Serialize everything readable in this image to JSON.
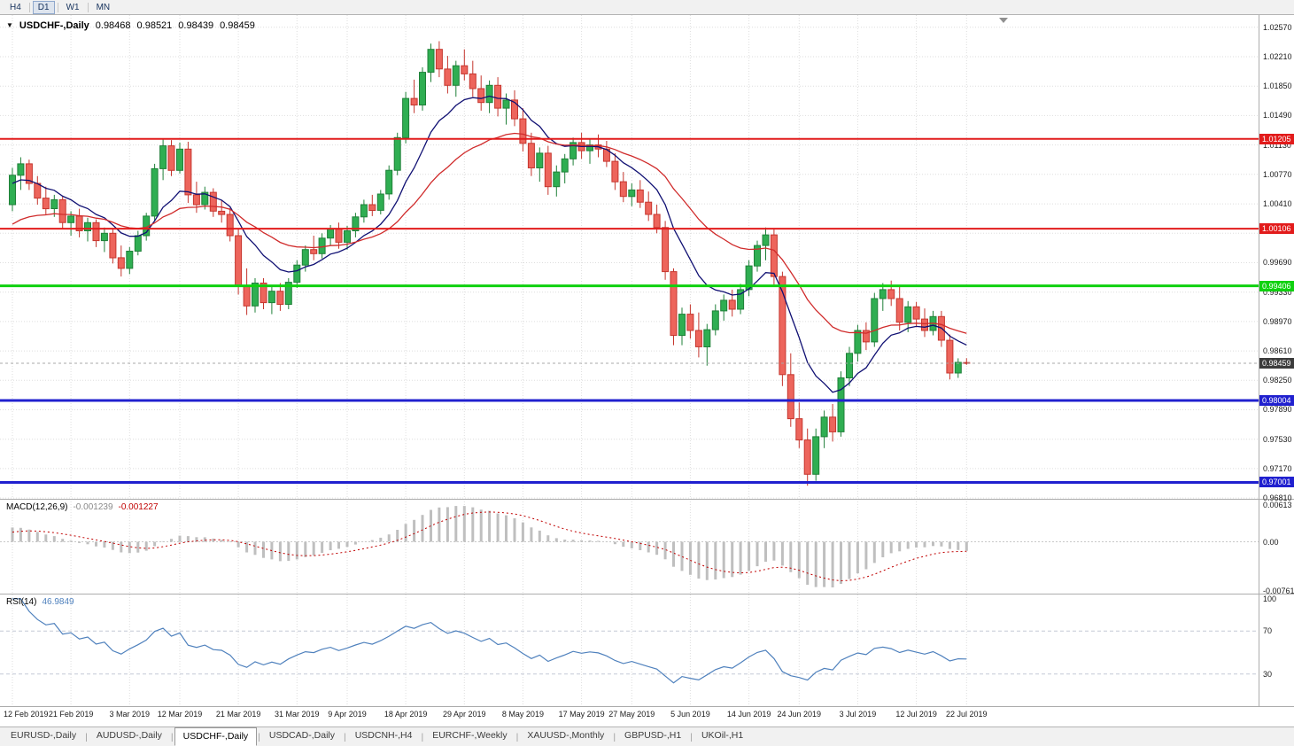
{
  "toolbar": {
    "timeframes": [
      {
        "label": "H4",
        "active": false
      },
      {
        "label": "D1",
        "active": true
      },
      {
        "label": "W1",
        "active": false
      },
      {
        "label": "MN",
        "active": false
      }
    ]
  },
  "colors": {
    "background": "#FFFFFF",
    "grid": "#DEDEDE",
    "bull": "#2FAE52",
    "bull_border": "#1F8038",
    "bear": "#ED655C",
    "bear_border": "#C5362E",
    "ma_fast": "#101073",
    "ma_slow": "#D02B2B",
    "hline_red": "#E21B1B",
    "hline_green": "#0FD10F",
    "hline_blue": "#2020CF",
    "macd_hist": "#BFBFBF",
    "macd_signal": "#C00000",
    "rsi_line": "#4F81BD",
    "rsi_level": "#C3C9D6",
    "current_price_box": "#3C3C3C",
    "axis_text": "#1A1A1A",
    "divider": "#ACACAC"
  },
  "chart_data": {
    "type": "candlestick",
    "title": "USDCHF-,Daily",
    "header": {
      "symbol": "USDCHF-,Daily",
      "open": "0.98468",
      "high": "0.98521",
      "low": "0.98439",
      "close": "0.98459"
    },
    "y_axis": {
      "min": 0.968,
      "max": 1.0272,
      "ticks": [
        "1.02570",
        "1.02210",
        "1.01850",
        "1.01490",
        "1.01130",
        "1.00770",
        "1.00410",
        "1.00050",
        "0.99690",
        "0.99330",
        "0.98970",
        "0.98610",
        "0.98250",
        "0.97890",
        "0.97530",
        "0.97170",
        "0.96810"
      ]
    },
    "x_labels": [
      {
        "label": "12 Feb 2019",
        "i": 0
      },
      {
        "label": "21 Feb 2019",
        "i": 7
      },
      {
        "label": "3 Mar 2019",
        "i": 14
      },
      {
        "label": "12 Mar 2019",
        "i": 20
      },
      {
        "label": "21 Mar 2019",
        "i": 27
      },
      {
        "label": "31 Mar 2019",
        "i": 34
      },
      {
        "label": "9 Apr 2019",
        "i": 40
      },
      {
        "label": "18 Apr 2019",
        "i": 47
      },
      {
        "label": "29 Apr 2019",
        "i": 54
      },
      {
        "label": "8 May 2019",
        "i": 61
      },
      {
        "label": "17 May 2019",
        "i": 68
      },
      {
        "label": "27 May 2019",
        "i": 74
      },
      {
        "label": "5 Jun 2019",
        "i": 81
      },
      {
        "label": "14 Jun 2019",
        "i": 88
      },
      {
        "label": "24 Jun 2019",
        "i": 94
      },
      {
        "label": "3 Jul 2019",
        "i": 101
      },
      {
        "label": "12 Jul 2019",
        "i": 108
      },
      {
        "label": "22 Jul 2019",
        "i": 114
      }
    ],
    "hlines": [
      {
        "price": 1.01205,
        "label": "1.01205",
        "color": "#E21B1B",
        "width": 2
      },
      {
        "price": 1.00106,
        "label": "1.00106",
        "color": "#E21B1B",
        "width": 2
      },
      {
        "price": 0.99406,
        "label": "0.99406",
        "color": "#0FD10F",
        "width": 3
      },
      {
        "price": 0.98004,
        "label": "0.98004",
        "color": "#2020CF",
        "width": 3
      },
      {
        "price": 0.97001,
        "label": "0.97001",
        "color": "#2020CF",
        "width": 3
      }
    ],
    "current": {
      "price": 0.98459,
      "label": "0.98459"
    },
    "moving_averages": [
      {
        "type": "EMA",
        "period": 10,
        "color": "#101073"
      },
      {
        "type": "EMA",
        "period": 25,
        "color": "#D02B2B"
      }
    ],
    "candles": [
      [
        1.004,
        1.0085,
        1.0032,
        1.0076
      ],
      [
        1.0076,
        1.0098,
        1.0058,
        1.009
      ],
      [
        1.009,
        1.0095,
        1.0058,
        1.0066
      ],
      [
        1.0066,
        1.0075,
        1.004,
        1.0048
      ],
      [
        1.0048,
        1.0062,
        1.0028,
        1.0035
      ],
      [
        1.0035,
        1.0052,
        1.0025,
        1.0046
      ],
      [
        1.0046,
        1.005,
        1.001,
        1.0018
      ],
      [
        1.0018,
        1.0032,
        1.0002,
        1.0026
      ],
      [
        1.0026,
        1.0035,
        1.0,
        1.0008
      ],
      [
        1.0008,
        1.0024,
        0.9995,
        1.0018
      ],
      [
        1.0018,
        1.0022,
        0.9988,
        0.9996
      ],
      [
        0.9996,
        1.0012,
        0.9982,
        1.0005
      ],
      [
        1.0005,
        1.001,
        0.9968,
        0.9975
      ],
      [
        0.9975,
        0.999,
        0.9952,
        0.9962
      ],
      [
        0.9962,
        0.9988,
        0.9955,
        0.9983
      ],
      [
        0.9983,
        1.0008,
        0.9978,
        1.0002
      ],
      [
        1.0002,
        1.003,
        0.9996,
        1.0026
      ],
      [
        1.0026,
        1.009,
        1.002,
        1.0084
      ],
      [
        1.0084,
        1.0121,
        1.007,
        1.0112
      ],
      [
        1.0112,
        1.0119,
        1.0075,
        1.0082
      ],
      [
        1.0082,
        1.0116,
        1.0078,
        1.0108
      ],
      [
        1.0108,
        1.0117,
        1.0042,
        1.0052
      ],
      [
        1.0052,
        1.0068,
        1.003,
        1.004
      ],
      [
        1.004,
        1.0062,
        1.0034,
        1.0055
      ],
      [
        1.0055,
        1.006,
        1.0025,
        1.0032
      ],
      [
        1.0032,
        1.0045,
        1.0018,
        1.0028
      ],
      [
        1.0028,
        1.0036,
        0.9995,
        1.0002
      ],
      [
        1.0002,
        1.001,
        0.993,
        0.994
      ],
      [
        0.994,
        0.9962,
        0.9905,
        0.9916
      ],
      [
        0.9916,
        0.995,
        0.9908,
        0.9944
      ],
      [
        0.9944,
        0.995,
        0.9912,
        0.992
      ],
      [
        0.992,
        0.994,
        0.9906,
        0.9934
      ],
      [
        0.9934,
        0.9944,
        0.991,
        0.9918
      ],
      [
        0.9918,
        0.995,
        0.9912,
        0.9945
      ],
      [
        0.9945,
        0.9972,
        0.9938,
        0.9966
      ],
      [
        0.9966,
        0.999,
        0.9958,
        0.9985
      ],
      [
        0.9985,
        1.0002,
        0.9972,
        0.998
      ],
      [
        0.998,
        1.0005,
        0.9974,
        0.9999
      ],
      [
        0.9999,
        1.0015,
        0.999,
        1.001
      ],
      [
        1.001,
        1.0018,
        0.9986,
        0.9994
      ],
      [
        0.9994,
        1.0014,
        0.9985,
        1.0008
      ],
      [
        1.0008,
        1.003,
        1.0,
        1.0025
      ],
      [
        1.0025,
        1.0046,
        1.0018,
        1.004
      ],
      [
        1.004,
        1.0052,
        1.0026,
        1.0033
      ],
      [
        1.0033,
        1.0058,
        1.0028,
        1.0053
      ],
      [
        1.0053,
        1.0088,
        1.0046,
        1.0082
      ],
      [
        1.0082,
        1.0128,
        1.0076,
        1.0122
      ],
      [
        1.0122,
        1.0178,
        1.0115,
        1.017
      ],
      [
        1.017,
        1.0193,
        1.0152,
        1.0162
      ],
      [
        1.0162,
        1.0208,
        1.0155,
        1.0202
      ],
      [
        1.0202,
        1.0237,
        1.019,
        1.023
      ],
      [
        1.023,
        1.024,
        1.0196,
        1.0206
      ],
      [
        1.0206,
        1.0222,
        1.0176,
        1.0186
      ],
      [
        1.0186,
        1.0216,
        1.0172,
        1.021
      ],
      [
        1.021,
        1.023,
        1.0192,
        1.02
      ],
      [
        1.02,
        1.0216,
        1.0172,
        1.0182
      ],
      [
        1.0182,
        1.0198,
        1.0155,
        1.0165
      ],
      [
        1.0165,
        1.0192,
        1.0152,
        1.0186
      ],
      [
        1.0186,
        1.0196,
        1.0148,
        1.0158
      ],
      [
        1.0158,
        1.0176,
        1.0138,
        1.0168
      ],
      [
        1.0168,
        1.018,
        1.0136,
        1.0145
      ],
      [
        1.0145,
        1.0158,
        1.0105,
        1.0115
      ],
      [
        1.0115,
        1.0128,
        1.0075,
        1.0085
      ],
      [
        1.0085,
        1.011,
        1.0068,
        1.0103
      ],
      [
        1.0103,
        1.0112,
        1.0052,
        1.0062
      ],
      [
        1.0062,
        1.0088,
        1.005,
        1.008
      ],
      [
        1.008,
        1.0102,
        1.0066,
        1.0096
      ],
      [
        1.0096,
        1.0122,
        1.0088,
        1.0116
      ],
      [
        1.0116,
        1.0128,
        1.0096,
        1.0106
      ],
      [
        1.0106,
        1.012,
        1.009,
        1.0113
      ],
      [
        1.0113,
        1.0126,
        1.0098,
        1.0108
      ],
      [
        1.0108,
        1.0118,
        1.0086,
        1.0093
      ],
      [
        1.0093,
        1.0103,
        1.0058,
        1.0068
      ],
      [
        1.0068,
        1.008,
        1.0043,
        1.005
      ],
      [
        1.005,
        1.0066,
        1.0038,
        1.0058
      ],
      [
        1.0058,
        1.007,
        1.0036,
        1.0043
      ],
      [
        1.0043,
        1.0056,
        1.002,
        1.0028
      ],
      [
        1.0028,
        1.004,
        1.0005,
        1.0012
      ],
      [
        1.0012,
        1.002,
        0.9948,
        0.9958
      ],
      [
        0.9958,
        0.9962,
        0.9868,
        0.988
      ],
      [
        0.988,
        0.9914,
        0.9868,
        0.9906
      ],
      [
        0.9906,
        0.9918,
        0.9876,
        0.9886
      ],
      [
        0.9886,
        0.9908,
        0.9853,
        0.9866
      ],
      [
        0.9866,
        0.9894,
        0.9843,
        0.9887
      ],
      [
        0.9887,
        0.9918,
        0.988,
        0.991
      ],
      [
        0.991,
        0.993,
        0.9898,
        0.9923
      ],
      [
        0.9923,
        0.9936,
        0.9903,
        0.9912
      ],
      [
        0.9912,
        0.9943,
        0.9906,
        0.9936
      ],
      [
        0.9936,
        0.9972,
        0.9928,
        0.9965
      ],
      [
        0.9965,
        0.9996,
        0.9958,
        0.999
      ],
      [
        0.999,
        1.0012,
        0.9972,
        1.0003
      ],
      [
        1.0003,
        1.001,
        0.9942,
        0.9952
      ],
      [
        0.9952,
        0.9958,
        0.9818,
        0.9832
      ],
      [
        0.9832,
        0.9858,
        0.9768,
        0.9778
      ],
      [
        0.9778,
        0.9798,
        0.9742,
        0.9752
      ],
      [
        0.9752,
        0.9766,
        0.9696,
        0.971
      ],
      [
        0.971,
        0.9766,
        0.9702,
        0.9756
      ],
      [
        0.9756,
        0.9788,
        0.9742,
        0.978
      ],
      [
        0.978,
        0.9796,
        0.975,
        0.9762
      ],
      [
        0.9762,
        0.9836,
        0.9756,
        0.9828
      ],
      [
        0.9828,
        0.9866,
        0.9818,
        0.9858
      ],
      [
        0.9858,
        0.9893,
        0.9848,
        0.9886
      ],
      [
        0.9886,
        0.9896,
        0.9862,
        0.9872
      ],
      [
        0.9872,
        0.9932,
        0.9866,
        0.9925
      ],
      [
        0.9925,
        0.9944,
        0.991,
        0.9936
      ],
      [
        0.9936,
        0.9947,
        0.9916,
        0.9925
      ],
      [
        0.9925,
        0.994,
        0.9886,
        0.9896
      ],
      [
        0.9896,
        0.9922,
        0.9884,
        0.9915
      ],
      [
        0.9915,
        0.9921,
        0.989,
        0.99
      ],
      [
        0.99,
        0.9913,
        0.9878,
        0.9886
      ],
      [
        0.9886,
        0.991,
        0.988,
        0.9903
      ],
      [
        0.9903,
        0.991,
        0.9866,
        0.9874
      ],
      [
        0.9874,
        0.9881,
        0.9826,
        0.9834
      ],
      [
        0.9834,
        0.9852,
        0.9828,
        0.9847
      ],
      [
        0.98468,
        0.98521,
        0.98439,
        0.98459
      ]
    ],
    "indicators": [
      {
        "name": "MACD",
        "title": "MACD(12,26,9)",
        "value_main": "-0.001239",
        "value_signal": "-0.001227",
        "range": [
          -0.008,
          0.0065
        ],
        "scale_labels": [
          {
            "text": "0.00613",
            "value": 0.00613
          },
          {
            "text": "0.00",
            "value": 0
          },
          {
            "text": "-0.00761",
            "value": -0.00761
          }
        ]
      },
      {
        "name": "RSI",
        "title": "RSI(14)",
        "value": "46.9849",
        "range": [
          0,
          104
        ],
        "levels": [
          70,
          30
        ],
        "scale_labels": [
          {
            "text": "100",
            "value": 100
          },
          {
            "text": "70",
            "value": 70
          },
          {
            "text": "30",
            "value": 30
          }
        ]
      }
    ]
  },
  "tabs": [
    {
      "label": "EURUSD-,Daily",
      "active": false
    },
    {
      "label": "AUDUSD-,Daily",
      "active": false
    },
    {
      "label": "USDCHF-,Daily",
      "active": true
    },
    {
      "label": "USDCAD-,Daily",
      "active": false
    },
    {
      "label": "USDCNH-,H4",
      "active": false
    },
    {
      "label": "EURCHF-,Weekly",
      "active": false
    },
    {
      "label": "XAUUSD-,Monthly",
      "active": false
    },
    {
      "label": "GBPUSD-,H1",
      "active": false
    },
    {
      "label": "UKOil-,H1",
      "active": false
    }
  ]
}
